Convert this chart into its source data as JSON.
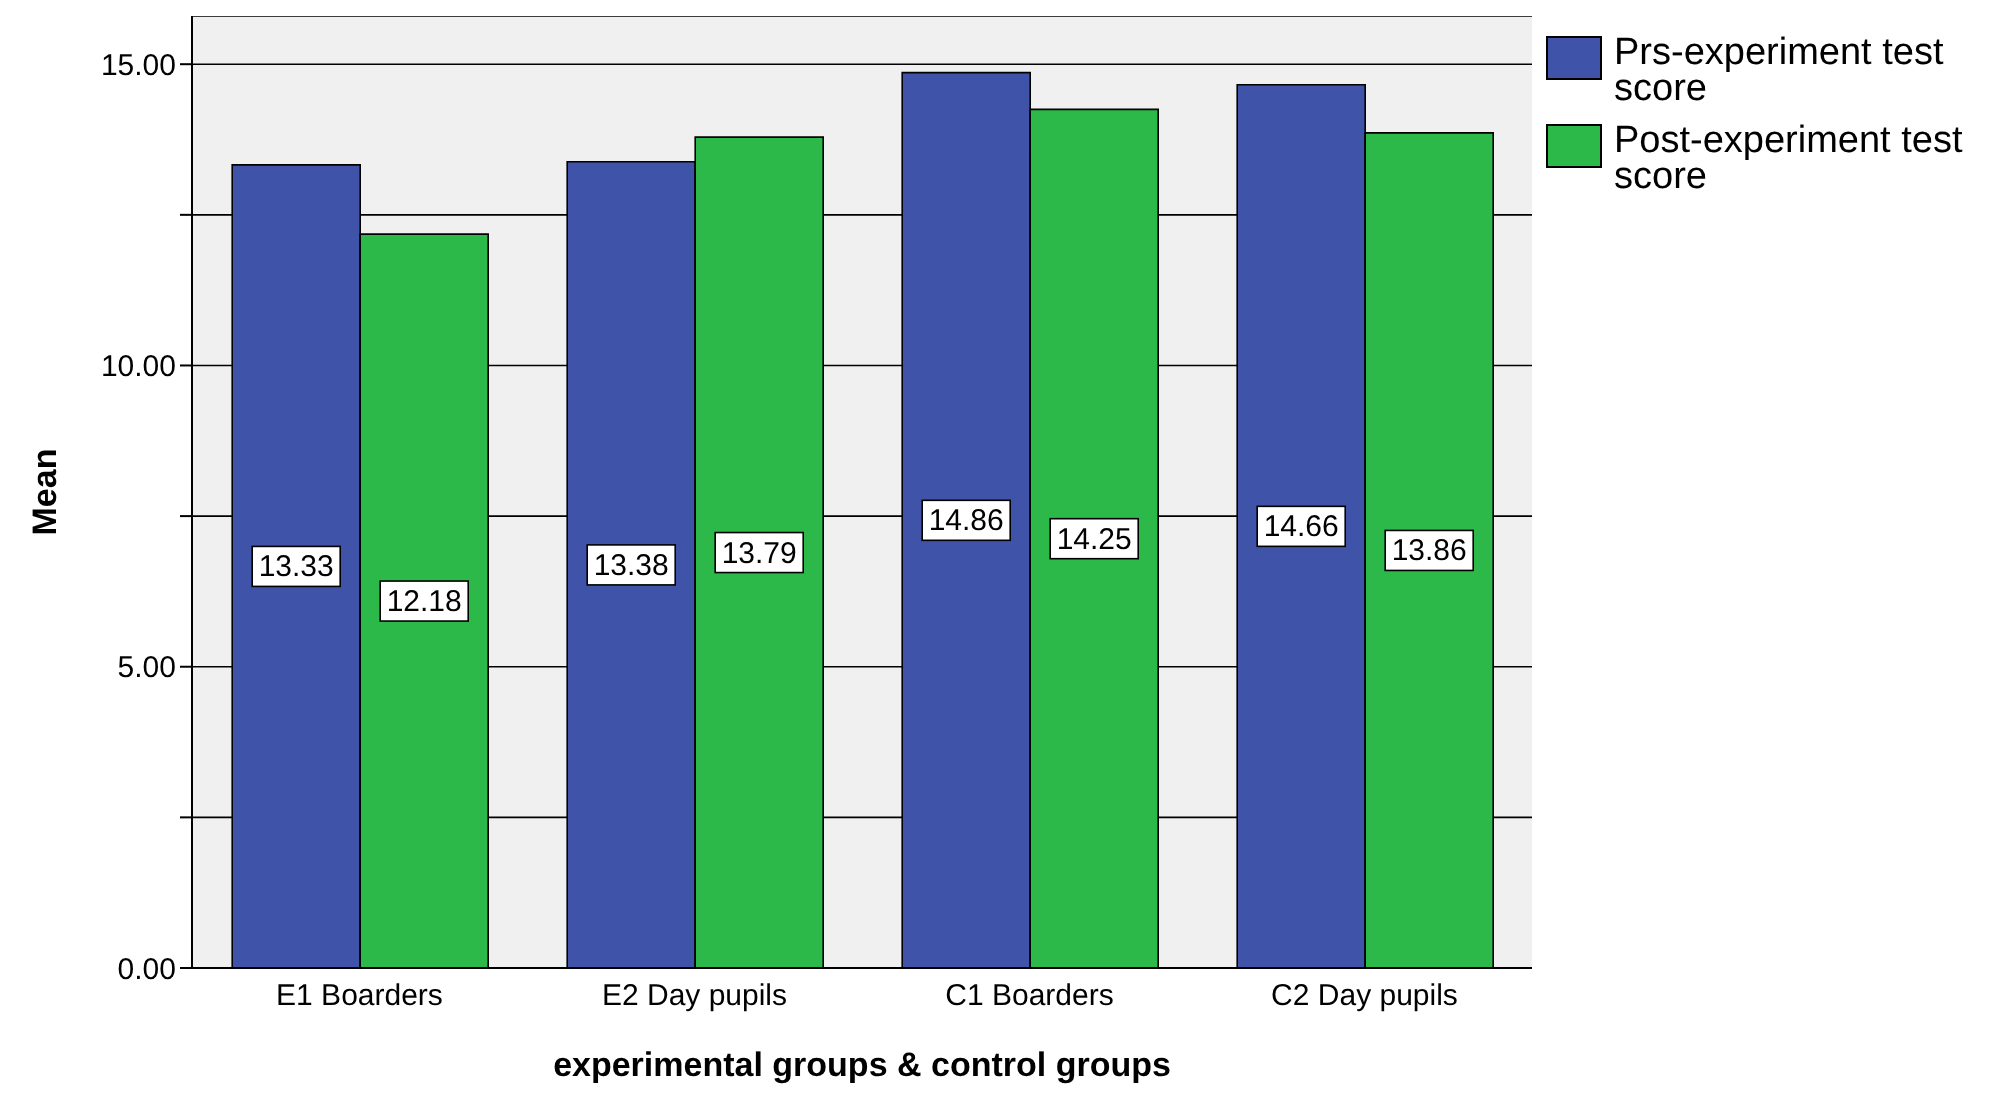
{
  "chart_data": {
    "type": "bar",
    "xlabel": "experimental groups & control groups",
    "ylabel": "Mean",
    "categories": [
      "E1 Boarders",
      "E2 Day pupils",
      "C1 Boarders",
      "C2 Day pupils"
    ],
    "series": [
      {
        "name": "Prs-experiment test score",
        "color": "#3f54a8",
        "values": [
          13.33,
          13.38,
          14.86,
          14.66
        ]
      },
      {
        "name": "Post-experiment test score",
        "color": "#2db84a",
        "values": [
          12.18,
          13.79,
          14.25,
          13.86
        ]
      }
    ],
    "ylim": [
      0,
      15.8
    ],
    "yticks": [
      {
        "value": 0,
        "label": "0.00"
      },
      {
        "value": 2.5,
        "label": null
      },
      {
        "value": 5,
        "label": "5.00"
      },
      {
        "value": 7.5,
        "label": null
      },
      {
        "value": 10,
        "label": "10.00"
      },
      {
        "value": 12.5,
        "label": null
      },
      {
        "value": 15,
        "label": "15.00"
      }
    ],
    "grid": "y",
    "legend": "top right",
    "data_labels": true
  }
}
